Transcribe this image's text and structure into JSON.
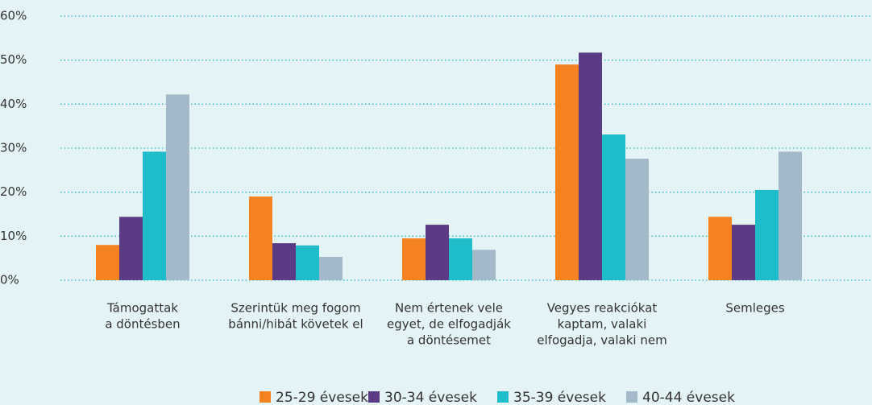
{
  "chart_data": {
    "type": "bar",
    "categories": [
      [
        "Támogattak",
        "a döntésben"
      ],
      [
        "Szerintük meg fogom",
        "bánni/hibát követek el"
      ],
      [
        "Nem értenek vele",
        "egyet, de elfogadják",
        "a döntésemet"
      ],
      [
        "Vegyes reakciókat",
        "kaptam, valaki",
        "elfogadja, valaki nem"
      ],
      [
        "Semleges"
      ]
    ],
    "series": [
      {
        "name": "25-29 évesek",
        "color": "#f58220",
        "values": [
          8.0,
          19.0,
          9.5,
          49.0,
          14.4
        ]
      },
      {
        "name": "30-34 évesek",
        "color": "#5c3b85",
        "values": [
          14.4,
          8.4,
          12.6,
          51.7,
          12.6
        ]
      },
      {
        "name": "35-39 évesek",
        "color": "#1fbcc9",
        "values": [
          29.2,
          7.9,
          9.5,
          33.1,
          20.5
        ]
      },
      {
        "name": "40-44 évesek",
        "color": "#a3b8c8",
        "values": [
          42.2,
          5.3,
          6.9,
          27.6,
          29.2
        ]
      }
    ],
    "ylim": [
      0,
      60
    ],
    "yticks": [
      {
        "value": 0,
        "label": "0%"
      },
      {
        "value": 10,
        "label": "10%"
      },
      {
        "value": 20,
        "label": "20%"
      },
      {
        "value": 30,
        "label": "30%"
      },
      {
        "value": 40,
        "label": "40%"
      },
      {
        "value": 50,
        "label": "50%"
      },
      {
        "value": 60,
        "label": "60%"
      }
    ],
    "grid": true,
    "legend": "bottom"
  }
}
